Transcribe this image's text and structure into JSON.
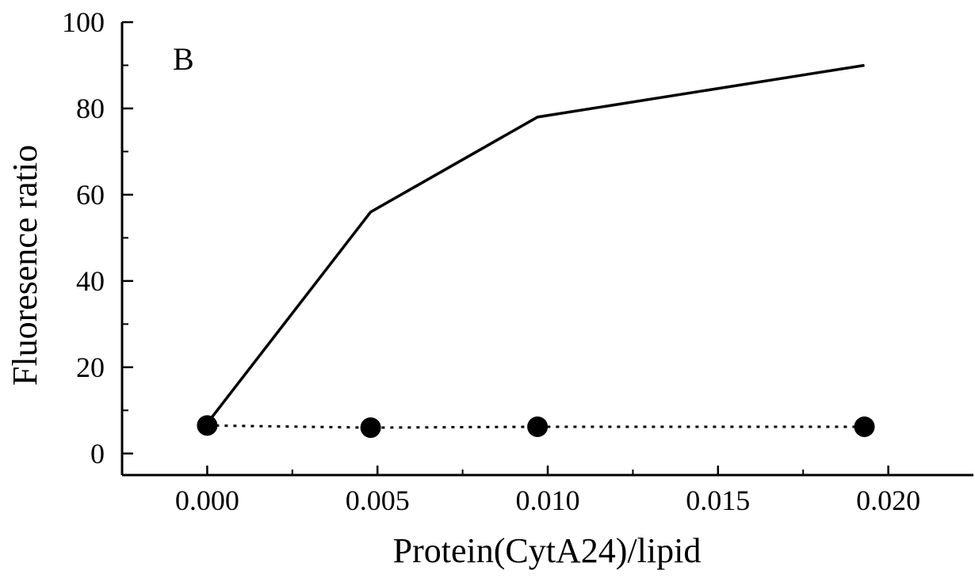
{
  "chart_data": {
    "type": "line",
    "title": "",
    "panel_label": "B",
    "xlabel": "Protein(CytA24)/lipid",
    "ylabel": "Fluoresence ratio",
    "xlim": [
      -0.0025,
      0.0225
    ],
    "ylim": [
      -5,
      100
    ],
    "x_ticks": [
      0.0,
      0.005,
      0.01,
      0.015,
      0.02
    ],
    "x_tick_labels": [
      "0.000",
      "0.005",
      "0.010",
      "0.015",
      "0.020"
    ],
    "x_minor_ticks": [
      0.0025,
      0.0075,
      0.0125,
      0.0175
    ],
    "y_ticks": [
      0,
      20,
      40,
      60,
      80,
      100
    ],
    "y_tick_labels": [
      "0",
      "20",
      "40",
      "60",
      "80",
      "100"
    ],
    "y_minor_ticks": [
      10,
      30,
      50,
      70,
      90
    ],
    "grid": false,
    "series": [
      {
        "style": "solid-line",
        "color": "#000000",
        "x": [
          0.0,
          0.0048,
          0.0097,
          0.0193
        ],
        "y": [
          7,
          56,
          78,
          90
        ]
      },
      {
        "style": "dotted-line-with-filled-circles",
        "color": "#000000",
        "x": [
          0.0,
          0.0048,
          0.0097,
          0.0193
        ],
        "y": [
          6.5,
          6,
          6.2,
          6.2
        ]
      }
    ]
  }
}
